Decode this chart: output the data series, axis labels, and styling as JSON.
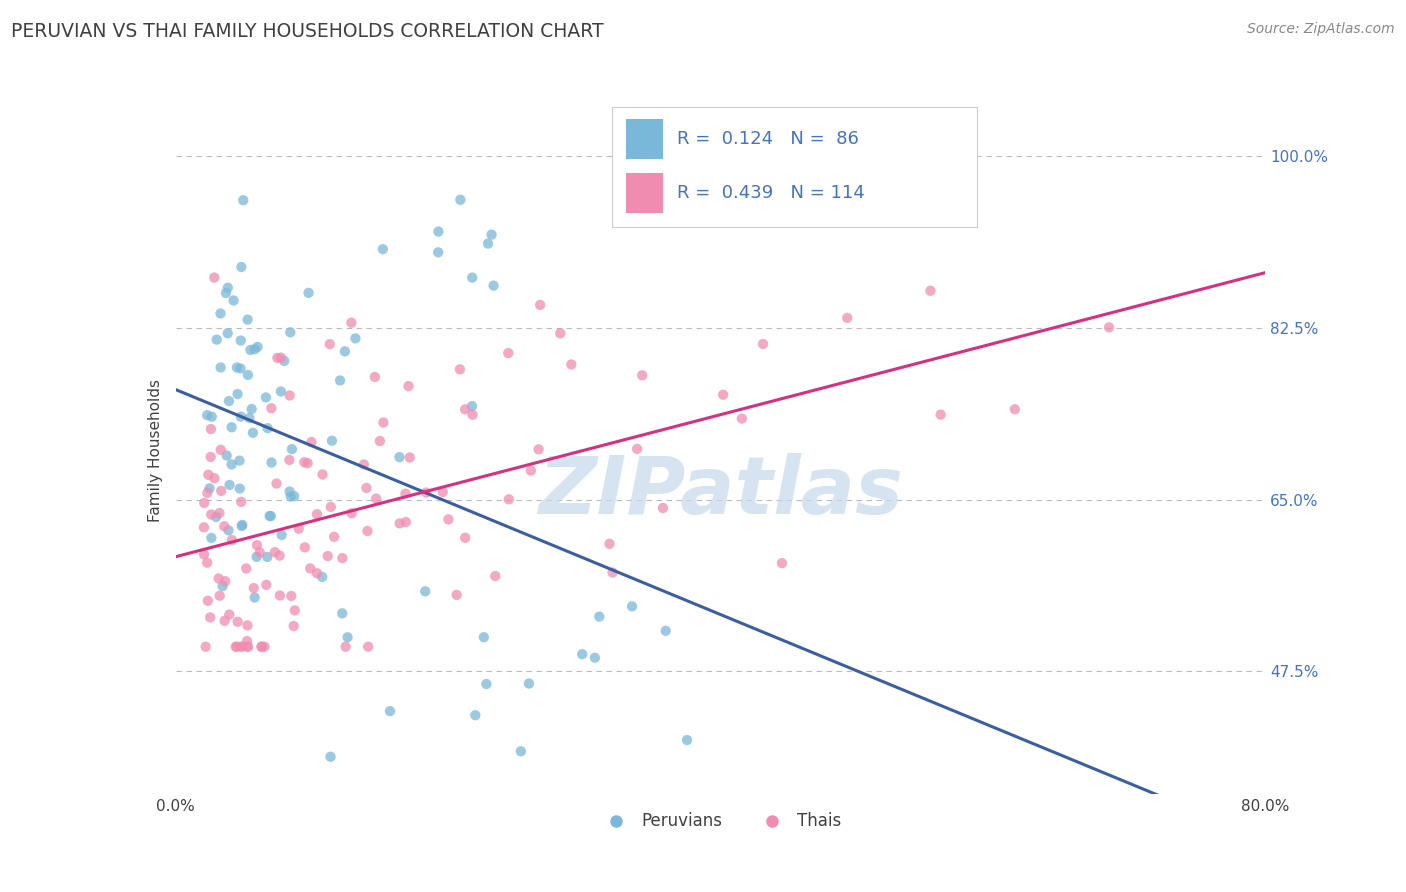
{
  "title": "PERUVIAN VS THAI FAMILY HOUSEHOLDS CORRELATION CHART",
  "source": "Source: ZipAtlas.com",
  "ylabel": "Family Households",
  "ytick_labels": [
    "47.5%",
    "65.0%",
    "82.5%",
    "100.0%"
  ],
  "ytick_values": [
    0.475,
    0.65,
    0.825,
    1.0
  ],
  "xlim": [
    0.0,
    0.8
  ],
  "ylim": [
    0.35,
    1.05
  ],
  "peruvian_color": "#7ab8d9",
  "thai_color": "#f08cb0",
  "peruvian_line_color": "#3a5fa0",
  "thai_line_color": "#d63080",
  "peruvian_R": 0.124,
  "peruvian_N": 86,
  "thai_R": 0.439,
  "thai_N": 114,
  "background_color": "#ffffff",
  "grid_color": "#bbbbbb",
  "title_color": "#404040",
  "ytick_color": "#4472c4",
  "xtick_color": "#404040",
  "legend_text_color": "#4472c4",
  "legend_r1": "R =  0.124   N =  86",
  "legend_r2": "R =  0.439   N = 114",
  "watermark": "ZIPatlas",
  "watermark_color": "#c5d8ea",
  "seed": 123
}
